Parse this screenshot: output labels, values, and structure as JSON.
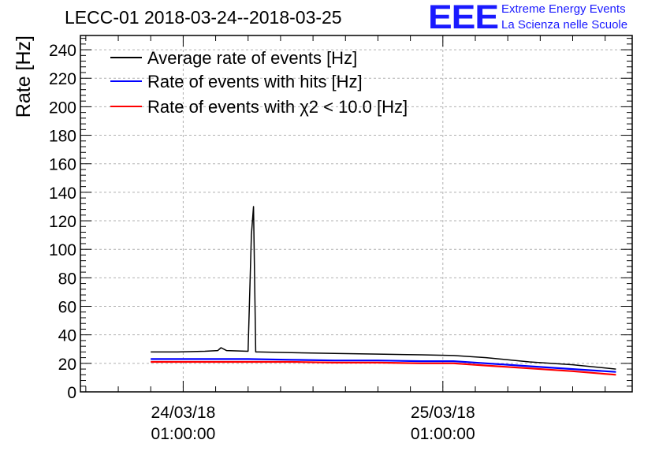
{
  "header": {
    "title": "LECC-01 2018-03-24--2018-03-25",
    "logo_text": "EEE",
    "brand_line1": "Extreme Energy Events",
    "brand_line2": "La Scienza nelle Scuole"
  },
  "colors": {
    "brand": "#1a1aff",
    "average": "#000000",
    "hits": "#0000ff",
    "chi2": "#ff0000",
    "grid": "#b0b0b0"
  },
  "chart_data": {
    "type": "line",
    "title": "LECC-01 2018-03-24--2018-03-25",
    "xlabel": "",
    "ylabel": "Rate [Hz]",
    "ylim": [
      0,
      250
    ],
    "yticks": [
      0,
      20,
      40,
      60,
      80,
      100,
      120,
      140,
      160,
      180,
      200,
      220,
      240
    ],
    "xlim_hours": [
      -9.5,
      41.5
    ],
    "xticks": [
      {
        "hour": 0,
        "label": [
          "24/03/18",
          "01:00:00"
        ]
      },
      {
        "hour": 24,
        "label": [
          "25/03/18",
          "01:00:00"
        ]
      }
    ],
    "grid": true,
    "legend_position": "top-left",
    "series": [
      {
        "name": "Average rate of events [Hz]",
        "color": "#000000",
        "x": [
          -3,
          -0.5,
          2,
          3.2,
          3.5,
          4,
          6,
          6.3,
          6.5,
          6.7,
          7,
          10,
          14,
          18,
          22,
          25,
          28,
          32,
          36,
          40
        ],
        "y": [
          28,
          28,
          28.5,
          29,
          31,
          29,
          28.5,
          110,
          130,
          28,
          28,
          27.5,
          27,
          26.5,
          26,
          25.5,
          24,
          21,
          19,
          16
        ]
      },
      {
        "name": "Rate of events with hits [Hz]",
        "color": "#0000ff",
        "x": [
          -3,
          2,
          6,
          10,
          14,
          18,
          22,
          25,
          28,
          32,
          36,
          40
        ],
        "y": [
          23,
          23,
          23,
          22.5,
          22,
          22,
          21.5,
          21.5,
          20,
          18,
          16,
          14
        ]
      },
      {
        "name": "Rate of events with χ2 < 10.0 [Hz]",
        "color": "#ff0000",
        "x": [
          -3,
          2,
          6,
          10,
          14,
          18,
          22,
          25,
          28,
          32,
          36,
          40
        ],
        "y": [
          21,
          21,
          21,
          21,
          20.5,
          20.5,
          20,
          20,
          18.5,
          16.5,
          14.5,
          12
        ]
      }
    ]
  }
}
